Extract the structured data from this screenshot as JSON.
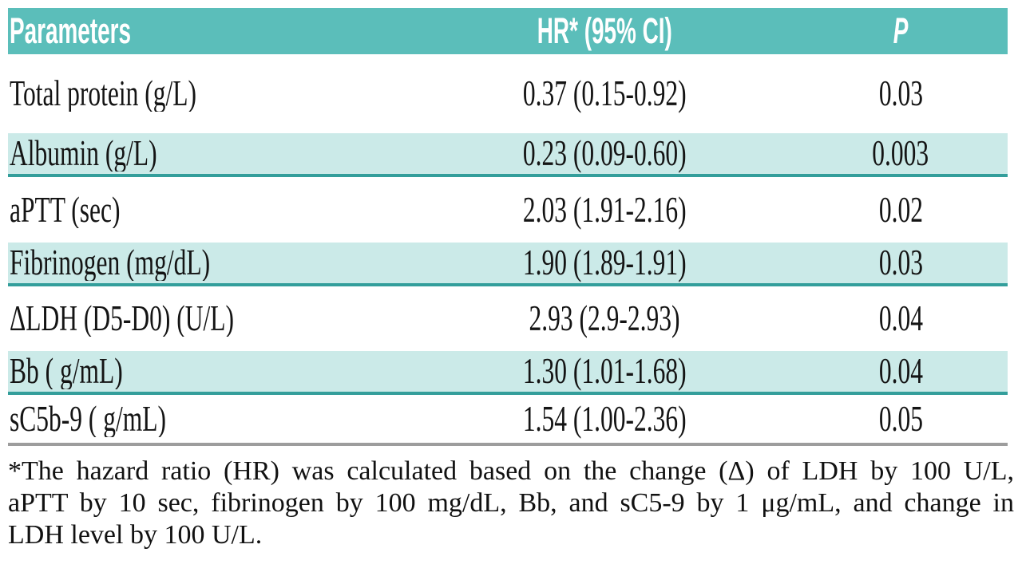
{
  "table": {
    "columns": [
      {
        "label": "Parameters"
      },
      {
        "label": "HR* (95% CI)"
      },
      {
        "label": "P"
      }
    ],
    "rows": [
      {
        "parameter": "Total protein (g/L)",
        "hr_ci": "0.37 (0.15-0.92)",
        "p": "0.03",
        "highlighted": false
      },
      {
        "parameter": "Albumin (g/L)",
        "hr_ci": "0.23 (0.09-0.60)",
        "p": "0.003",
        "highlighted": true
      },
      {
        "parameter": "aPTT (sec)",
        "hr_ci": "2.03 (1.91-2.16)",
        "p": "0.02",
        "highlighted": false
      },
      {
        "parameter": "Fibrinogen (mg/dL)",
        "hr_ci": "1.90 (1.89-1.91)",
        "p": "0.03",
        "highlighted": true
      },
      {
        "parameter": "ΔLDH (D5-D0) (U/L)",
        "hr_ci": "2.93 (2.9-2.93)",
        "p": "0.04",
        "highlighted": false
      },
      {
        "parameter": "Bb ( g/mL)",
        "hr_ci": "1.30 (1.01-1.68)",
        "p": "0.04",
        "highlighted": true
      },
      {
        "parameter": "sC5b-9 ( g/mL)",
        "hr_ci": "1.54 (1.00-2.36)",
        "p": "0.05",
        "highlighted": false
      }
    ]
  },
  "footnote": {
    "lines": [
      "*The hazard ratio (HR) was calculated based on the change (Δ) of LDH by 100 U/L,",
      "aPTT by 10 sec, fibrinogen by 100 mg/dL, Bb, and sC5-9 by 1 μg/mL, and change in",
      "LDH level by 100 U/L."
    ]
  },
  "colors": {
    "header_bg": "#5bbeba",
    "header_text": "#ffffff",
    "row_highlight_bg": "#cbeae8",
    "row_highlight_border": "#339e9b",
    "table_bottom_border": "#9d9d9d",
    "body_text": "#141414"
  }
}
